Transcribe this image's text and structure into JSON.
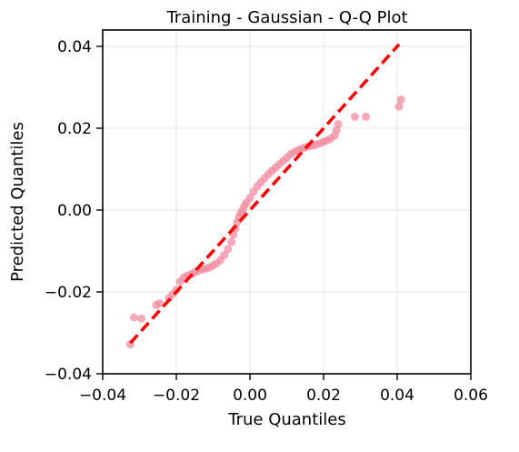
{
  "chart_data": {
    "type": "scatter",
    "title": "Training - Gaussian - Q-Q Plot",
    "xlabel": "True Quantiles",
    "ylabel": "Predicted Quantiles",
    "xlim": [
      -0.04,
      0.06
    ],
    "ylim": [
      -0.04,
      0.044
    ],
    "xticks": [
      -0.04,
      -0.02,
      0.0,
      0.02,
      0.04,
      0.06
    ],
    "xtick_labels": [
      "−0.04",
      "−0.02",
      "0.00",
      "0.02",
      "0.04",
      "0.06"
    ],
    "yticks": [
      -0.04,
      -0.02,
      0.0,
      0.02,
      0.04
    ],
    "ytick_labels": [
      "−0.04",
      "−0.02",
      "0.00",
      "0.02",
      "0.04"
    ],
    "grid": true,
    "colors": {
      "points": "#f08ca0",
      "reference_line": "#ff0000"
    },
    "series": [
      {
        "kind": "points",
        "points": [
          [
            -0.0325,
            -0.0328
          ],
          [
            -0.0315,
            -0.0262
          ],
          [
            -0.0295,
            -0.0265
          ],
          [
            -0.0255,
            -0.0232
          ],
          [
            -0.0245,
            -0.0228
          ],
          [
            -0.022,
            -0.0215
          ],
          [
            -0.021,
            -0.0205
          ],
          [
            -0.02,
            -0.0195
          ],
          [
            -0.019,
            -0.0175
          ],
          [
            -0.018,
            -0.0165
          ],
          [
            -0.017,
            -0.016
          ],
          [
            -0.016,
            -0.0157
          ],
          [
            -0.015,
            -0.0152
          ],
          [
            -0.014,
            -0.0148
          ],
          [
            -0.013,
            -0.0145
          ],
          [
            -0.012,
            -0.0143
          ],
          [
            -0.011,
            -0.014
          ],
          [
            -0.01,
            -0.0135
          ],
          [
            -0.009,
            -0.013
          ],
          [
            -0.008,
            -0.0122
          ],
          [
            -0.007,
            -0.011
          ],
          [
            -0.006,
            -0.0095
          ],
          [
            -0.005,
            -0.0078
          ],
          [
            -0.0045,
            -0.006
          ],
          [
            -0.004,
            -0.0045
          ],
          [
            -0.0035,
            -0.003
          ],
          [
            -0.003,
            -0.0018
          ],
          [
            -0.0025,
            -0.0008
          ],
          [
            -0.002,
            0.0
          ],
          [
            -0.0015,
            0.001
          ],
          [
            -0.001,
            0.0018
          ],
          [
            0.0,
            0.003
          ],
          [
            0.001,
            0.0045
          ],
          [
            0.002,
            0.0058
          ],
          [
            0.003,
            0.0068
          ],
          [
            0.004,
            0.0078
          ],
          [
            0.005,
            0.0088
          ],
          [
            0.006,
            0.0096
          ],
          [
            0.007,
            0.0104
          ],
          [
            0.008,
            0.0112
          ],
          [
            0.009,
            0.012
          ],
          [
            0.01,
            0.0128
          ],
          [
            0.011,
            0.0136
          ],
          [
            0.012,
            0.0142
          ],
          [
            0.013,
            0.0146
          ],
          [
            0.014,
            0.015
          ],
          [
            0.015,
            0.0153
          ],
          [
            0.016,
            0.0156
          ],
          [
            0.017,
            0.0158
          ],
          [
            0.018,
            0.016
          ],
          [
            0.019,
            0.0163
          ],
          [
            0.02,
            0.0167
          ],
          [
            0.021,
            0.017
          ],
          [
            0.022,
            0.0175
          ],
          [
            0.023,
            0.0182
          ],
          [
            0.0235,
            0.0195
          ],
          [
            0.024,
            0.021
          ],
          [
            0.0285,
            0.0228
          ],
          [
            0.0315,
            0.0228
          ],
          [
            0.0405,
            0.0253
          ],
          [
            0.041,
            0.027
          ]
        ]
      },
      {
        "kind": "reference-line",
        "x": [
          -0.0325,
          0.0405
        ],
        "y": [
          -0.0325,
          0.0405
        ]
      }
    ]
  }
}
